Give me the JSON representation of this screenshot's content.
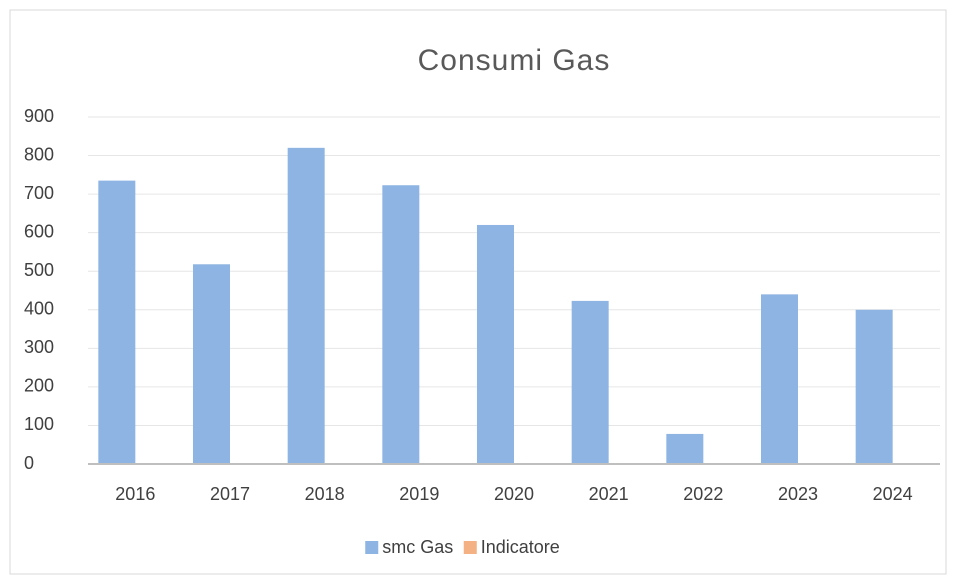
{
  "chart_data": {
    "type": "bar",
    "title": "Consumi Gas",
    "categories": [
      "2016",
      "2017",
      "2018",
      "2019",
      "2020",
      "2021",
      "2022",
      "2023",
      "2024"
    ],
    "series": [
      {
        "name": "smc Gas",
        "color": "#8db4e2",
        "values": [
          735,
          518,
          820,
          723,
          620,
          423,
          78,
          440,
          400
        ]
      },
      {
        "name": "Indicatore",
        "color": "#f4b183",
        "values": [
          null,
          null,
          null,
          null,
          null,
          null,
          null,
          null,
          null
        ]
      }
    ],
    "ylim": [
      0,
      900
    ],
    "yticks": [
      0,
      100,
      200,
      300,
      400,
      500,
      600,
      700,
      800,
      900
    ],
    "grid": true,
    "legend": "bottom"
  }
}
